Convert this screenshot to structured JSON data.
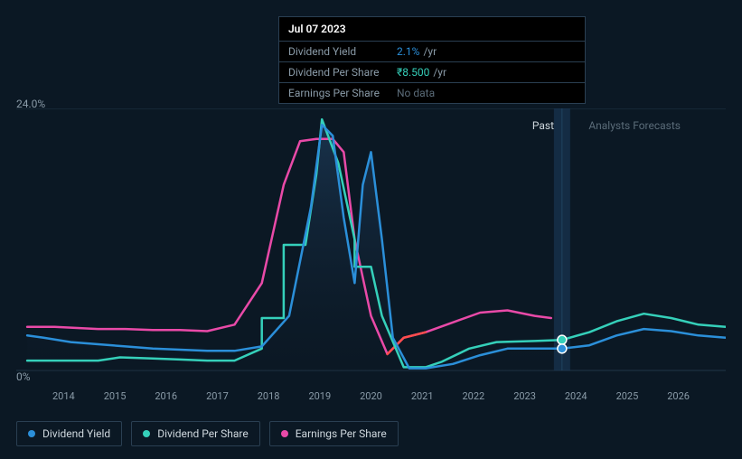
{
  "tooltip": {
    "date": "Jul 07 2023",
    "rows": [
      {
        "label": "Dividend Yield",
        "value": "2.1%",
        "unit": "/yr",
        "color": "blue"
      },
      {
        "label": "Dividend Per Share",
        "value": "₹8.500",
        "unit": "/yr",
        "color": "teal"
      },
      {
        "label": "Earnings Per Share",
        "value": "No data",
        "unit": "",
        "color": "muted"
      }
    ]
  },
  "chart": {
    "type": "line",
    "background": "#0b1824",
    "grid_color": "#223647",
    "ymax_label": "24.0%",
    "ymin_label": "0%",
    "ylim": [
      0,
      24
    ],
    "xlim": [
      2013.5,
      2026.5
    ],
    "xticks": [
      "2014",
      "2015",
      "2016",
      "2017",
      "2018",
      "2019",
      "2020",
      "2021",
      "2022",
      "2023",
      "2024",
      "2025",
      "2026"
    ],
    "past_label": "Past",
    "forecast_label": "Analysts Forecasts",
    "split_x": 2023.5,
    "area_fill": "#13263a",
    "marker_x": 2023.5,
    "series": {
      "dividend_yield": {
        "color": "#2b8fd9",
        "stroke_width": 2.5,
        "marker_color": "#2b8fd9",
        "points": [
          [
            2013.7,
            3.2
          ],
          [
            2014.0,
            3.0
          ],
          [
            2014.5,
            2.6
          ],
          [
            2015.0,
            2.4
          ],
          [
            2015.5,
            2.2
          ],
          [
            2016.0,
            2.0
          ],
          [
            2016.5,
            1.9
          ],
          [
            2017.0,
            1.8
          ],
          [
            2017.5,
            1.8
          ],
          [
            2018.0,
            2.2
          ],
          [
            2018.5,
            5.0
          ],
          [
            2018.9,
            15.0
          ],
          [
            2019.1,
            22.5
          ],
          [
            2019.3,
            21.5
          ],
          [
            2019.5,
            14.0
          ],
          [
            2019.7,
            8.0
          ],
          [
            2019.85,
            17.0
          ],
          [
            2020.0,
            20.0
          ],
          [
            2020.2,
            12.0
          ],
          [
            2020.4,
            3.0
          ],
          [
            2020.7,
            0.2
          ],
          [
            2021.0,
            0.2
          ],
          [
            2021.5,
            0.6
          ],
          [
            2022.0,
            1.4
          ],
          [
            2022.5,
            2.0
          ],
          [
            2023.0,
            2.0
          ],
          [
            2023.5,
            2.0
          ],
          [
            2024.0,
            2.3
          ],
          [
            2024.5,
            3.2
          ],
          [
            2025.0,
            3.8
          ],
          [
            2025.5,
            3.6
          ],
          [
            2026.0,
            3.2
          ],
          [
            2026.5,
            3.0
          ]
        ]
      },
      "dividend_per_share": {
        "color": "#35d0ba",
        "color_forecast": "#4fb8d6",
        "stroke_width": 2.5,
        "marker_color": "#35d0ba",
        "points": [
          [
            2013.7,
            0.9
          ],
          [
            2014.5,
            0.9
          ],
          [
            2015.0,
            0.9
          ],
          [
            2015.4,
            1.2
          ],
          [
            2016.0,
            1.1
          ],
          [
            2016.5,
            1.0
          ],
          [
            2017.0,
            0.9
          ],
          [
            2017.5,
            0.9
          ],
          [
            2018.0,
            2.0
          ],
          [
            2018.0,
            4.8
          ],
          [
            2018.4,
            4.8
          ],
          [
            2018.4,
            11.5
          ],
          [
            2018.8,
            11.5
          ],
          [
            2019.0,
            18.0
          ],
          [
            2019.1,
            23.0
          ],
          [
            2019.4,
            19.0
          ],
          [
            2019.7,
            12.0
          ],
          [
            2019.7,
            9.5
          ],
          [
            2020.0,
            9.5
          ],
          [
            2020.2,
            5.0
          ],
          [
            2020.6,
            0.3
          ],
          [
            2021.0,
            0.3
          ],
          [
            2021.3,
            0.8
          ],
          [
            2021.8,
            2.0
          ],
          [
            2022.3,
            2.6
          ],
          [
            2023.0,
            2.7
          ],
          [
            2023.5,
            2.8
          ],
          [
            2024.0,
            3.5
          ],
          [
            2024.5,
            4.5
          ],
          [
            2025.0,
            5.2
          ],
          [
            2025.5,
            4.8
          ],
          [
            2026.0,
            4.2
          ],
          [
            2026.5,
            4.0
          ]
        ]
      },
      "earnings_per_share": {
        "color": "#e94aa8",
        "stroke_width": 2.5,
        "points": [
          [
            2013.7,
            4.0
          ],
          [
            2014.2,
            4.0
          ],
          [
            2015.0,
            3.8
          ],
          [
            2015.5,
            3.8
          ],
          [
            2016.0,
            3.7
          ],
          [
            2016.5,
            3.7
          ],
          [
            2017.0,
            3.6
          ],
          [
            2017.5,
            4.2
          ],
          [
            2018.0,
            8.0
          ],
          [
            2018.4,
            17.0
          ],
          [
            2018.7,
            21.0
          ],
          [
            2019.0,
            21.2
          ],
          [
            2019.3,
            21.2
          ],
          [
            2019.5,
            20.0
          ],
          [
            2019.7,
            12.0
          ],
          [
            2020.0,
            5.0
          ],
          [
            2020.3,
            1.5
          ],
          [
            2020.6,
            3.0
          ],
          [
            2021.0,
            3.5
          ],
          [
            2021.5,
            4.4
          ],
          [
            2022.0,
            5.3
          ],
          [
            2022.5,
            5.5
          ],
          [
            2023.0,
            5.0
          ],
          [
            2023.3,
            4.8
          ]
        ],
        "points_red": [
          [
            2020.3,
            1.5
          ],
          [
            2020.6,
            3.0
          ],
          [
            2021.0,
            3.5
          ]
        ],
        "red_color": "#ff4d4d"
      }
    }
  },
  "legend": [
    {
      "label": "Dividend Yield",
      "color": "#2b8fd9"
    },
    {
      "label": "Dividend Per Share",
      "color": "#35d0ba"
    },
    {
      "label": "Earnings Per Share",
      "color": "#e94aa8"
    }
  ]
}
